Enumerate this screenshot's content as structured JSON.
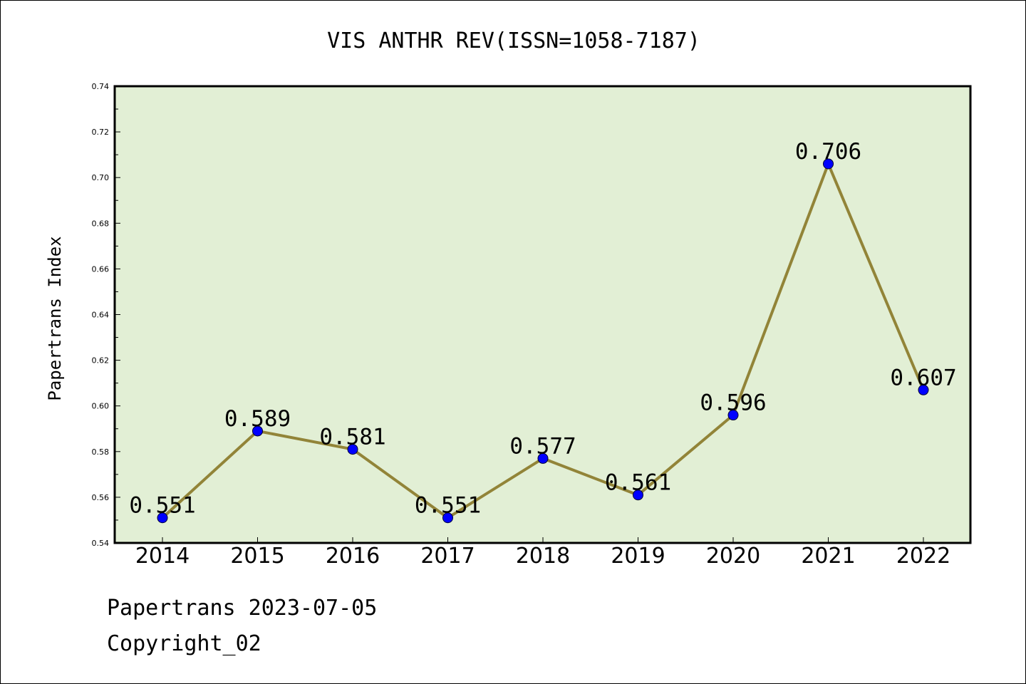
{
  "chart_data": {
    "type": "line",
    "title": "VIS ANTHR REV(ISSN=1058-7187)",
    "xlabel": "",
    "ylabel": "Papertrans Index",
    "categories": [
      "2014",
      "2015",
      "2016",
      "2017",
      "2018",
      "2019",
      "2020",
      "2021",
      "2022"
    ],
    "values": [
      0.551,
      0.589,
      0.581,
      0.551,
      0.577,
      0.561,
      0.596,
      0.706,
      0.607
    ],
    "data_labels": [
      "0.551",
      "0.589",
      "0.581",
      "0.551",
      "0.577",
      "0.561",
      "0.596",
      "0.706",
      "0.607"
    ],
    "ylim": [
      0.54,
      0.74
    ],
    "yticks": [
      0.54,
      0.56,
      0.58,
      0.6,
      0.62,
      0.64,
      0.66,
      0.68,
      0.7,
      0.72,
      0.74
    ],
    "ytick_labels": [
      "0.54",
      "0.56",
      "0.58",
      "0.60",
      "0.62",
      "0.64",
      "0.66",
      "0.68",
      "0.70",
      "0.72",
      "0.74"
    ],
    "grid": false,
    "legend": "none",
    "colors": {
      "plot_background": "#e2efd5",
      "line": "#928438",
      "marker": "#0000ff",
      "frame": "#000000"
    }
  },
  "footer": {
    "date_text": "Papertrans 2023-07-05",
    "copyright_text": "Copyright_02"
  }
}
